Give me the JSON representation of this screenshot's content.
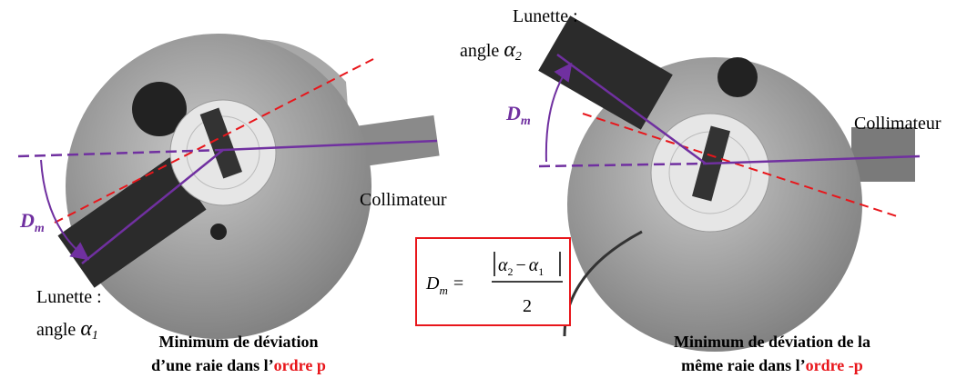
{
  "left_panel": {
    "telescope_label": "Lunette :",
    "angle_label": "angle",
    "angle_symbol": "α",
    "angle_subscript": "1",
    "deviation_symbol": "D",
    "deviation_subscript": "m",
    "collimator_label": "Collimateur",
    "caption": {
      "line1": "Minimum de déviation",
      "line2_prefix": "d’une raie dans l’",
      "line2_highlight": "ordre p"
    }
  },
  "right_panel": {
    "telescope_label": "Lunette :",
    "angle_label": "angle",
    "angle_symbol": "α",
    "angle_subscript": "2",
    "deviation_symbol": "D",
    "deviation_subscript": "m",
    "collimator_label": "Collimateur",
    "caption": {
      "line1": "Minimum de déviation de la",
      "line2_prefix": "même raie dans l’",
      "line2_highlight": "ordre -p"
    }
  },
  "formula": {
    "lhs": "D",
    "lhs_subscript": "m",
    "equals": "=",
    "symbol": "α",
    "first_subscript": "2",
    "minus": "−",
    "second_subscript": "1",
    "denominator": "2"
  }
}
